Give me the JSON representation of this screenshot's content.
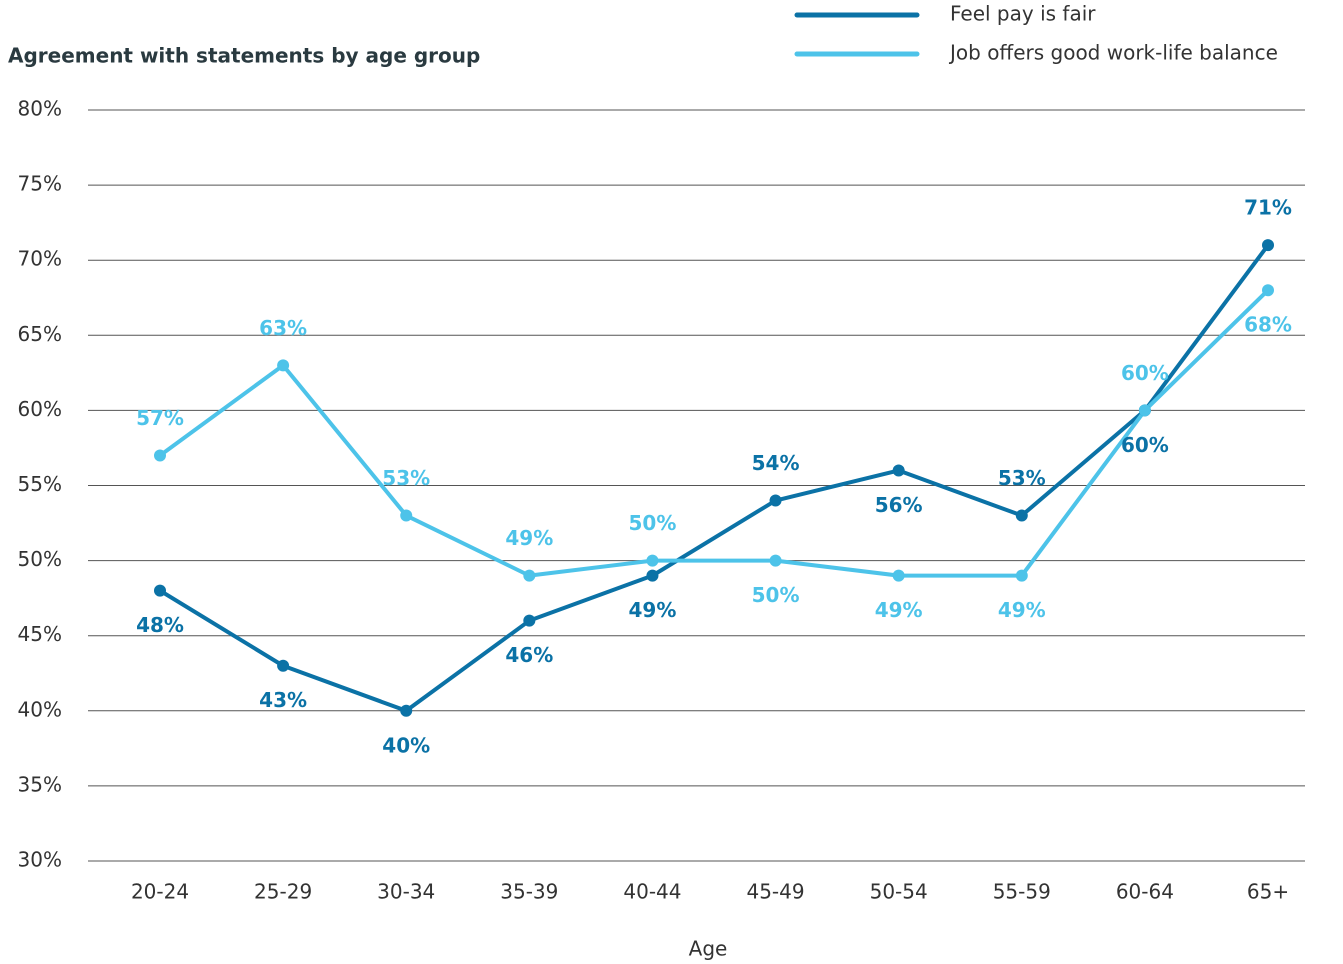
{
  "chart_data": {
    "type": "line",
    "title": "Agreement with statements by age group",
    "x_label": "Age",
    "categories": [
      "20-24",
      "25-29",
      "30-34",
      "35-39",
      "40-44",
      "45-49",
      "50-54",
      "55-59",
      "60-64",
      "65+"
    ],
    "series": [
      {
        "name": "Feel pay is fair",
        "color": "#0b72a6",
        "values": [
          48,
          43,
          40,
          46,
          49,
          54,
          56,
          53,
          60,
          71
        ],
        "value_labels": [
          "48%",
          "43%",
          "40%",
          "46%",
          "49%",
          "54%",
          "56%",
          "53%",
          "60%",
          "71%"
        ]
      },
      {
        "name": "Job offers good work-life balance",
        "color": "#4dc3e9",
        "values": [
          57,
          63,
          53,
          49,
          50,
          50,
          49,
          49,
          60,
          68
        ],
        "value_labels": [
          "57%",
          "63%",
          "53%",
          "49%",
          "50%",
          "50%",
          "49%",
          "49%",
          "60%",
          "68%"
        ]
      }
    ],
    "ylim": [
      30,
      80
    ],
    "yticks": [
      {
        "value": 30,
        "label": "30%"
      },
      {
        "value": 35,
        "label": "35%"
      },
      {
        "value": 40,
        "label": "40%"
      },
      {
        "value": 45,
        "label": "45%"
      },
      {
        "value": 50,
        "label": "50%"
      },
      {
        "value": 55,
        "label": "55%"
      },
      {
        "value": 60,
        "label": "60%"
      },
      {
        "value": 65,
        "label": "65%"
      },
      {
        "value": 70,
        "label": "70%"
      },
      {
        "value": 75,
        "label": "75%"
      },
      {
        "value": 80,
        "label": "80%"
      }
    ],
    "grid": true,
    "legend": "top-right"
  }
}
